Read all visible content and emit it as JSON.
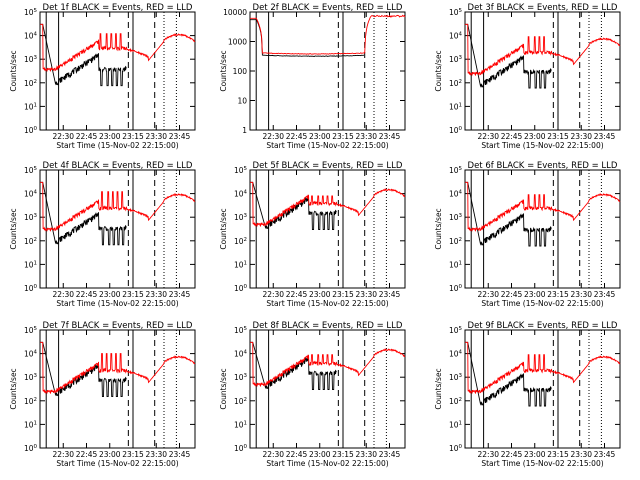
{
  "figure": {
    "xlabel": "Start Time (15-Nov-02 22:15:00)",
    "ylabel": "Counts/sec",
    "x_tick_labels": [
      "22:30",
      "22:45",
      "23:00",
      "23:15",
      "23:30",
      "23:45"
    ],
    "series_colors": {
      "events": "#000000",
      "lld": "#ff0000"
    }
  },
  "chart_data": [
    {
      "type": "line",
      "title": "Det 1f BLACK = Events, RED = LLD",
      "yscale": "log",
      "ylim": [
        1,
        100000
      ],
      "y_tick_labels": [
        "10^0",
        "10^1",
        "10^2",
        "10^3",
        "10^4",
        "10^5"
      ],
      "profile": "flare",
      "lld_base": 300,
      "events_base": 50,
      "spikes_at_minutes": [
        39,
        43,
        46,
        49,
        52
      ],
      "spike_peak": 12000
    },
    {
      "type": "line",
      "title": "Det 2f BLACK = Events, RED = LLD",
      "yscale": "log",
      "ylim": [
        1,
        15000
      ],
      "y_tick_labels": [
        "1",
        "10",
        "100",
        "1000",
        "10000"
      ],
      "profile": "flat",
      "lld_level": 600,
      "events_level": 500
    },
    {
      "type": "line",
      "title": "Det 3f BLACK = Events, RED = LLD",
      "yscale": "log",
      "ylim": [
        1,
        100000
      ],
      "y_tick_labels": [
        "10^0",
        "10^1",
        "10^2",
        "10^3",
        "10^4",
        "10^5"
      ],
      "profile": "flare",
      "lld_base": 200,
      "events_base": 40,
      "spikes_at_minutes": [
        41,
        45,
        48,
        51
      ],
      "spike_peak": 9000
    },
    {
      "type": "line",
      "title": "Det 4f BLACK = Events, RED = LLD",
      "yscale": "log",
      "ylim": [
        1,
        100000
      ],
      "y_tick_labels": [
        "10^0",
        "10^1",
        "10^2",
        "10^3",
        "10^4",
        "10^5"
      ],
      "profile": "flare",
      "lld_base": 250,
      "events_base": 45,
      "spikes_at_minutes": [
        40,
        44,
        47,
        50,
        53
      ],
      "spike_peak": 12000
    },
    {
      "type": "line",
      "title": "Det 5f BLACK = Events, RED = LLD",
      "yscale": "log",
      "ylim": [
        1,
        100000
      ],
      "y_tick_labels": [
        "10^0",
        "10^1",
        "10^2",
        "10^3",
        "10^4",
        "10^5"
      ],
      "profile": "flare",
      "lld_base": 400,
      "events_base": 200,
      "spikes_at_minutes": [
        40,
        44,
        47,
        50,
        53
      ],
      "spike_peak": 8000
    },
    {
      "type": "line",
      "title": "Det 6f BLACK = Events, RED = LLD",
      "yscale": "log",
      "ylim": [
        1,
        100000
      ],
      "y_tick_labels": [
        "10^0",
        "10^1",
        "10^2",
        "10^3",
        "10^4",
        "10^5"
      ],
      "profile": "flare",
      "lld_base": 250,
      "events_base": 40,
      "spikes_at_minutes": [
        41,
        45,
        48,
        51
      ],
      "spike_peak": 9000
    },
    {
      "type": "line",
      "title": "Det 7f BLACK = Events, RED = LLD",
      "yscale": "log",
      "ylim": [
        1,
        100000
      ],
      "y_tick_labels": [
        "10^0",
        "10^1",
        "10^2",
        "10^3",
        "10^4",
        "10^5"
      ],
      "profile": "flare",
      "lld_base": 200,
      "events_base": 100,
      "spikes_at_minutes": [
        40,
        43,
        46,
        49,
        52
      ],
      "spike_peak": 10000
    },
    {
      "type": "line",
      "title": "Det 8f BLACK = Events, RED = LLD",
      "yscale": "log",
      "ylim": [
        1,
        100000
      ],
      "y_tick_labels": [
        "10^0",
        "10^1",
        "10^2",
        "10^3",
        "10^4",
        "10^5"
      ],
      "profile": "flare",
      "lld_base": 400,
      "events_base": 200,
      "spikes_at_minutes": [
        40,
        44,
        47,
        50,
        53
      ],
      "spike_peak": 9000
    },
    {
      "type": "line",
      "title": "Det 9f BLACK = Events, RED = LLD",
      "yscale": "log",
      "ylim": [
        1,
        100000
      ],
      "y_tick_labels": [
        "10^0",
        "10^1",
        "10^2",
        "10^3",
        "10^4",
        "10^5"
      ],
      "profile": "flare",
      "lld_base": 200,
      "events_base": 40,
      "spikes_at_minutes": [
        41,
        45,
        48,
        51
      ],
      "spike_peak": 9000
    }
  ]
}
